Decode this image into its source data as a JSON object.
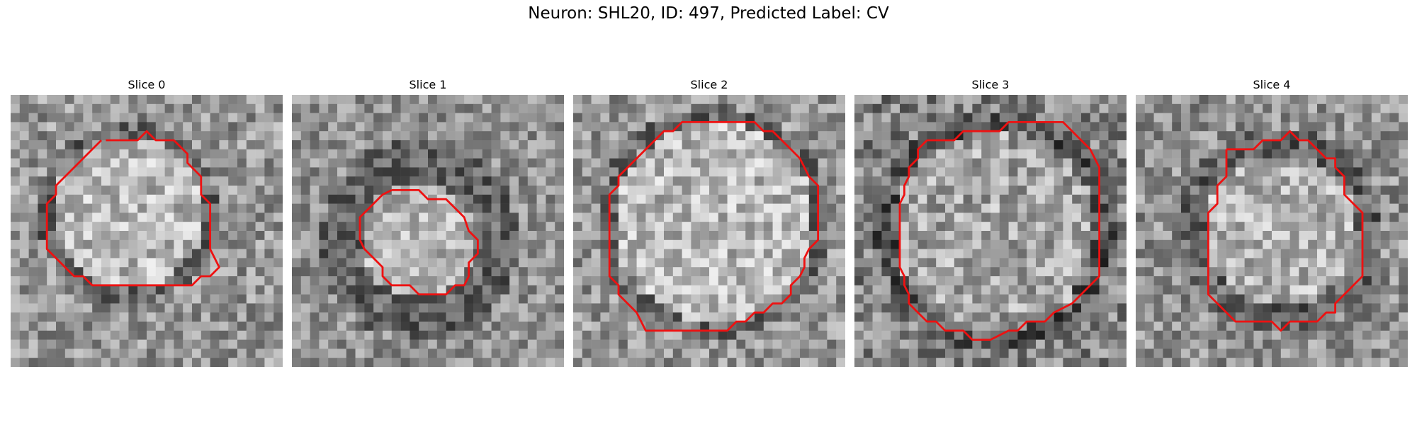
{
  "figure": {
    "title": "Neuron: SHL20, ID: 497, Predicted Label: CV",
    "contour_color": "#ee1111",
    "colormap": "gray"
  },
  "slices": [
    {
      "title": "Slice 0"
    },
    {
      "title": "Slice 1"
    },
    {
      "title": "Slice 2"
    },
    {
      "title": "Slice 3"
    },
    {
      "title": "Slice 4"
    }
  ]
}
